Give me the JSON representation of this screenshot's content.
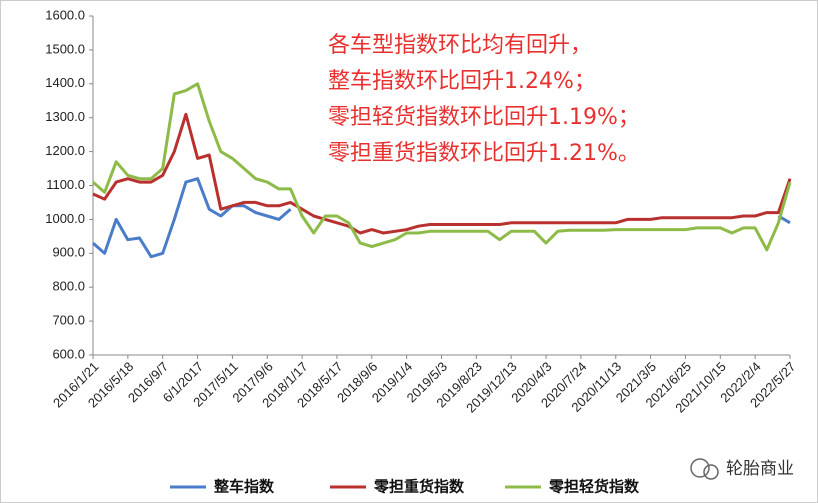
{
  "chart_data": {
    "type": "line",
    "annotation": [
      "各车型指数环比均有回升，",
      "整车指数环比回升1.24%；",
      "零担轻货指数环比回升1.19%；",
      "零担重货指数环比回升1.21%。"
    ],
    "watermark": "轮胎商业",
    "categories": [
      "2016/1/21",
      null,
      null,
      "2016/5/18",
      null,
      null,
      "2016/9/7",
      null,
      null,
      "6/1/2017",
      null,
      null,
      "2017/5/11",
      null,
      null,
      "2017/9/6",
      null,
      null,
      "2018/1/17",
      null,
      null,
      "2018/5/17",
      null,
      null,
      "2018/9/6",
      null,
      null,
      "2019/1/4",
      null,
      null,
      "2019/5/3",
      null,
      null,
      "2019/8/23",
      null,
      null,
      "2019/12/13",
      null,
      null,
      "2020/4/3",
      null,
      null,
      "2020/7/24",
      null,
      null,
      "2020/11/13",
      null,
      null,
      "2021/3/5",
      null,
      null,
      "2021/6/25",
      null,
      null,
      "2021/10/15",
      null,
      null,
      "2022/2/4",
      null,
      null,
      "2022/5/27"
    ],
    "series": [
      {
        "name": "整车指数",
        "color": "#4a7cc9",
        "values": [
          930,
          900,
          1000,
          940,
          945,
          890,
          900,
          1000,
          1110,
          1120,
          1030,
          1010,
          1040,
          1040,
          1020,
          1010,
          1000,
          1030,
          null,
          null,
          null,
          null,
          null,
          null,
          null,
          null,
          null,
          null,
          null,
          null,
          null,
          null,
          null,
          null,
          null,
          null,
          null,
          null,
          null,
          null,
          null,
          null,
          null,
          null,
          null,
          null,
          null,
          null,
          null,
          null,
          null,
          null,
          null,
          null,
          null,
          null,
          null,
          null,
          null,
          1010,
          990
        ]
      },
      {
        "name": "零担重货指数",
        "color": "#b8312f",
        "values": [
          1075,
          1060,
          1110,
          1120,
          1110,
          1110,
          1130,
          1200,
          1310,
          1180,
          1190,
          1030,
          1040,
          1050,
          1050,
          1040,
          1040,
          1050,
          1030,
          1010,
          1000,
          990,
          980,
          960,
          970,
          960,
          965,
          970,
          980,
          985,
          985,
          985,
          985,
          985,
          985,
          985,
          990,
          990,
          990,
          990,
          990,
          990,
          990,
          990,
          990,
          990,
          1000,
          1000,
          1000,
          1005,
          1005,
          1005,
          1005,
          1005,
          1005,
          1005,
          1010,
          1010,
          1020,
          1020,
          1120
        ]
      },
      {
        "name": "零担轻货指数",
        "color": "#8dbb47",
        "values": [
          1110,
          1080,
          1170,
          1130,
          1120,
          1120,
          1150,
          1370,
          1380,
          1400,
          1290,
          1200,
          1180,
          1150,
          1120,
          1110,
          1090,
          1090,
          1010,
          960,
          1010,
          1010,
          990,
          930,
          920,
          930,
          940,
          960,
          960,
          965,
          965,
          965,
          965,
          965,
          965,
          940,
          965,
          965,
          965,
          930,
          965,
          968,
          968,
          968,
          968,
          970,
          970,
          970,
          970,
          970,
          970,
          970,
          975,
          975,
          975,
          960,
          975,
          975,
          910,
          990,
          1110
        ]
      }
    ],
    "ylim": [
      600,
      1600
    ],
    "yticks": [
      {
        "value": 600,
        "label": "600.0"
      },
      {
        "value": 700,
        "label": "700.0"
      },
      {
        "value": 800,
        "label": "800.0"
      },
      {
        "value": 900,
        "label": "900.0"
      },
      {
        "value": 1000,
        "label": "1000.0"
      },
      {
        "value": 1100,
        "label": "1100.0"
      },
      {
        "value": 1200,
        "label": "1200.0"
      },
      {
        "value": 1300,
        "label": "1300.0"
      },
      {
        "value": 1400,
        "label": "1400.0"
      },
      {
        "value": 1500,
        "label": "1500.0"
      },
      {
        "value": 1600,
        "label": "1600.0"
      }
    ],
    "grid": false
  }
}
